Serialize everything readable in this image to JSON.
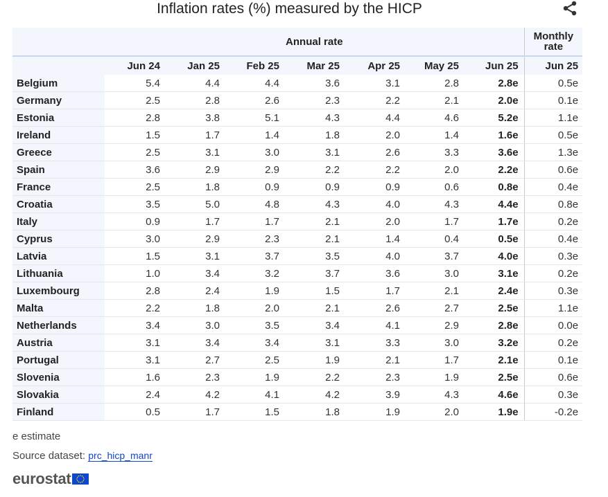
{
  "title": "Inflation rates (%) measured by the HICP",
  "share_icon": "share-icon",
  "chart_data": {
    "type": "table",
    "title": "Inflation rates (%) measured by the HICP",
    "groups": {
      "annual": "Annual rate",
      "monthly_line1": "Monthly",
      "monthly_line2": "rate"
    },
    "columns": [
      "Jun 24",
      "Jan 25",
      "Feb 25",
      "Mar 25",
      "Apr 25",
      "May 25",
      "Jun 25",
      "Jun 25"
    ],
    "rows": [
      {
        "country": "Belgium",
        "values": [
          "5.4",
          "4.4",
          "4.4",
          "3.6",
          "3.1",
          "2.8",
          "2.8e",
          "0.5e"
        ]
      },
      {
        "country": "Germany",
        "values": [
          "2.5",
          "2.8",
          "2.6",
          "2.3",
          "2.2",
          "2.1",
          "2.0e",
          "0.1e"
        ]
      },
      {
        "country": "Estonia",
        "values": [
          "2.8",
          "3.8",
          "5.1",
          "4.3",
          "4.4",
          "4.6",
          "5.2e",
          "1.1e"
        ]
      },
      {
        "country": "Ireland",
        "values": [
          "1.5",
          "1.7",
          "1.4",
          "1.8",
          "2.0",
          "1.4",
          "1.6e",
          "0.5e"
        ]
      },
      {
        "country": "Greece",
        "values": [
          "2.5",
          "3.1",
          "3.0",
          "3.1",
          "2.6",
          "3.3",
          "3.6e",
          "1.3e"
        ]
      },
      {
        "country": "Spain",
        "values": [
          "3.6",
          "2.9",
          "2.9",
          "2.2",
          "2.2",
          "2.0",
          "2.2e",
          "0.6e"
        ]
      },
      {
        "country": "France",
        "values": [
          "2.5",
          "1.8",
          "0.9",
          "0.9",
          "0.9",
          "0.6",
          "0.8e",
          "0.4e"
        ]
      },
      {
        "country": "Croatia",
        "values": [
          "3.5",
          "5.0",
          "4.8",
          "4.3",
          "4.0",
          "4.3",
          "4.4e",
          "0.8e"
        ]
      },
      {
        "country": "Italy",
        "values": [
          "0.9",
          "1.7",
          "1.7",
          "2.1",
          "2.0",
          "1.7",
          "1.7e",
          "0.2e"
        ]
      },
      {
        "country": "Cyprus",
        "values": [
          "3.0",
          "2.9",
          "2.3",
          "2.1",
          "1.4",
          "0.4",
          "0.5e",
          "0.4e"
        ]
      },
      {
        "country": "Latvia",
        "values": [
          "1.5",
          "3.1",
          "3.7",
          "3.5",
          "4.0",
          "3.7",
          "4.0e",
          "0.3e"
        ]
      },
      {
        "country": "Lithuania",
        "values": [
          "1.0",
          "3.4",
          "3.2",
          "3.7",
          "3.6",
          "3.0",
          "3.1e",
          "0.2e"
        ]
      },
      {
        "country": "Luxembourg",
        "values": [
          "2.8",
          "2.4",
          "1.9",
          "1.5",
          "1.7",
          "2.1",
          "2.4e",
          "0.3e"
        ]
      },
      {
        "country": "Malta",
        "values": [
          "2.2",
          "1.8",
          "2.0",
          "2.1",
          "2.6",
          "2.7",
          "2.5e",
          "1.1e"
        ]
      },
      {
        "country": "Netherlands",
        "values": [
          "3.4",
          "3.0",
          "3.5",
          "3.4",
          "4.1",
          "2.9",
          "2.8e",
          "0.0e"
        ]
      },
      {
        "country": "Austria",
        "values": [
          "3.1",
          "3.4",
          "3.4",
          "3.1",
          "3.3",
          "3.0",
          "3.2e",
          "0.2e"
        ]
      },
      {
        "country": "Portugal",
        "values": [
          "3.1",
          "2.7",
          "2.5",
          "1.9",
          "2.1",
          "1.7",
          "2.1e",
          "0.1e"
        ]
      },
      {
        "country": "Slovenia",
        "values": [
          "1.6",
          "2.3",
          "1.9",
          "2.2",
          "2.3",
          "1.9",
          "2.5e",
          "0.6e"
        ]
      },
      {
        "country": "Slovakia",
        "values": [
          "2.4",
          "4.2",
          "4.1",
          "4.2",
          "3.9",
          "4.3",
          "4.6e",
          "0.3e"
        ]
      },
      {
        "country": "Finland",
        "values": [
          "0.5",
          "1.7",
          "1.5",
          "1.8",
          "1.9",
          "2.0",
          "1.9e",
          "-0.2e"
        ]
      }
    ]
  },
  "footer": {
    "note": "e estimate",
    "source_label": "Source dataset:",
    "source_link": "prc_hicp_manr",
    "logo_text": "eurostat"
  }
}
